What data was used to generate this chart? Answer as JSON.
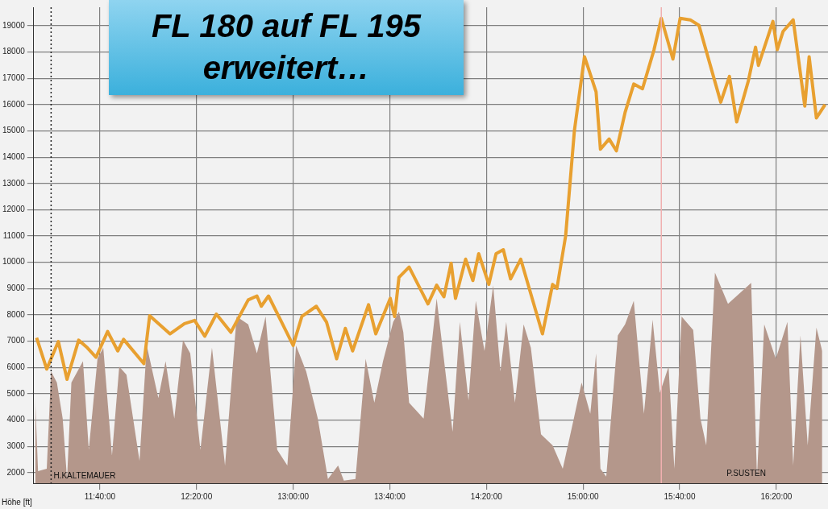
{
  "chart_data": {
    "type": "line",
    "title": "FL 180 auf FL 195 erweitert…",
    "ylabel": "Höhe [ft]",
    "xlim": [
      11.21,
      16.69
    ],
    "ylim": [
      1600,
      19700
    ],
    "xticks": [
      {
        "value": 11.6667,
        "label": "11:40:00"
      },
      {
        "value": 12.3333,
        "label": "12:20:00"
      },
      {
        "value": 13,
        "label": "13:00:00"
      },
      {
        "value": 13.6667,
        "label": "13:40:00"
      },
      {
        "value": 14.3333,
        "label": "14:20:00"
      },
      {
        "value": 15,
        "label": "15:00:00"
      },
      {
        "value": 15.6667,
        "label": "15:40:00"
      },
      {
        "value": 16.3333,
        "label": "16:20:00"
      }
    ],
    "yticks": [
      2000,
      3000,
      4000,
      5000,
      6000,
      7000,
      8000,
      9000,
      10000,
      11000,
      12000,
      13000,
      14000,
      15000,
      16000,
      17000,
      18000,
      19000
    ],
    "grid": true,
    "legend": false,
    "marker": "none",
    "series": [
      {
        "type": "area",
        "color": "#b4978b",
        "x": [
          11.22,
          11.24,
          11.3,
          11.33,
          11.37,
          11.41,
          11.44,
          11.47,
          11.55,
          11.59,
          11.65,
          11.69,
          11.75,
          11.8,
          11.85,
          11.94,
          11.99,
          12.07,
          12.12,
          12.18,
          12.24,
          12.29,
          12.36,
          12.44,
          12.53,
          12.61,
          12.69,
          12.75,
          12.81,
          12.89,
          12.96,
          13.02,
          13.09,
          13.17,
          13.24,
          13.31,
          13.35,
          13.43,
          13.5,
          13.56,
          13.62,
          13.69,
          13.73,
          13.76,
          13.8,
          13.9,
          13.99,
          14.1,
          14.15,
          14.21,
          14.26,
          14.32,
          14.38,
          14.43,
          14.47,
          14.53,
          14.59,
          14.64,
          14.71,
          14.79,
          14.86,
          14.94,
          14.99,
          15.05,
          15.09,
          15.12,
          15.16,
          15.24,
          15.29,
          15.35,
          15.42,
          15.48,
          15.53,
          15.59,
          15.63,
          15.68,
          15.76,
          15.81,
          15.85,
          15.91,
          16.0,
          16.06,
          16.16,
          16.2,
          16.25,
          16.33,
          16.41,
          16.45,
          16.5,
          16.55,
          16.61,
          16.65
        ],
        "values": [
          4840,
          2060,
          2150,
          5850,
          5430,
          4060,
          1760,
          5430,
          6240,
          2870,
          6330,
          6750,
          2660,
          6030,
          5730,
          2450,
          6840,
          4840,
          6240,
          4060,
          7040,
          6540,
          2870,
          6750,
          2270,
          7940,
          7640,
          6540,
          7940,
          2870,
          2270,
          6840,
          5850,
          4060,
          1760,
          2270,
          1700,
          1760,
          6330,
          4660,
          6240,
          7730,
          8120,
          7340,
          4660,
          4060,
          8630,
          3550,
          7730,
          4750,
          8540,
          6630,
          9130,
          5850,
          7730,
          4660,
          7640,
          6750,
          3460,
          3040,
          2150,
          4150,
          5430,
          4240,
          6540,
          2150,
          1850,
          7220,
          7640,
          8540,
          4240,
          7820,
          5040,
          6030,
          2150,
          7940,
          7430,
          4060,
          3040,
          9610,
          8420,
          8720,
          9220,
          1850,
          7640,
          6330,
          7730,
          2270,
          7220,
          3040,
          7520,
          6630
        ]
      },
      {
        "color": "#e8a030",
        "x": [
          11.23,
          11.3,
          11.38,
          11.44,
          11.52,
          11.58,
          11.64,
          11.72,
          11.79,
          11.83,
          11.97,
          12.01,
          12.15,
          12.25,
          12.32,
          12.39,
          12.47,
          12.57,
          12.69,
          12.75,
          12.78,
          12.83,
          12.92,
          13.0,
          13.06,
          13.16,
          13.23,
          13.3,
          13.36,
          13.41,
          13.52,
          13.57,
          13.67,
          13.7,
          13.73,
          13.8,
          13.93,
          13.99,
          14.04,
          14.09,
          14.12,
          14.19,
          14.24,
          14.28,
          14.35,
          14.4,
          14.45,
          14.5,
          14.57,
          14.72,
          14.79,
          14.82,
          14.88,
          14.94,
          15.01,
          15.03,
          15.09,
          15.12,
          15.18,
          15.23,
          15.29,
          15.35,
          15.41,
          15.49,
          15.54,
          15.62,
          15.67,
          15.74,
          15.8,
          15.95,
          16.01,
          16.06,
          16.14,
          16.19,
          16.21,
          16.31,
          16.34,
          16.38,
          16.45,
          16.53,
          16.56,
          16.61,
          16.67
        ],
        "values": [
          7130,
          5940,
          6990,
          5550,
          7040,
          6750,
          6390,
          7370,
          6630,
          7070,
          6150,
          7970,
          7280,
          7670,
          7790,
          7190,
          8030,
          7340,
          8570,
          8720,
          8330,
          8720,
          7730,
          6840,
          7940,
          8330,
          7730,
          6330,
          7490,
          6630,
          8390,
          7280,
          8630,
          7940,
          9430,
          9820,
          8420,
          9130,
          8690,
          9970,
          8630,
          10120,
          9310,
          10330,
          9160,
          10330,
          10480,
          9370,
          10120,
          7280,
          9160,
          9010,
          11010,
          14990,
          17820,
          17490,
          16480,
          14300,
          14690,
          14240,
          15700,
          16780,
          16600,
          18090,
          19280,
          17730,
          19280,
          19220,
          19010,
          16090,
          17070,
          15340,
          16890,
          18180,
          17490,
          19160,
          18090,
          18780,
          19220,
          15940,
          17820,
          15490,
          16000
        ],
        "line_style": "solid"
      }
    ],
    "ref_lines": [
      {
        "axis": "x",
        "value": 11.33,
        "label": "H.KALTEMAUER",
        "line_style": "dotted",
        "color": "#202020"
      },
      {
        "axis": "x",
        "value": 15.54,
        "color": "#f0b0b0",
        "line_style": "solid"
      }
    ],
    "annotations": [
      "P.SUSTEN"
    ]
  }
}
